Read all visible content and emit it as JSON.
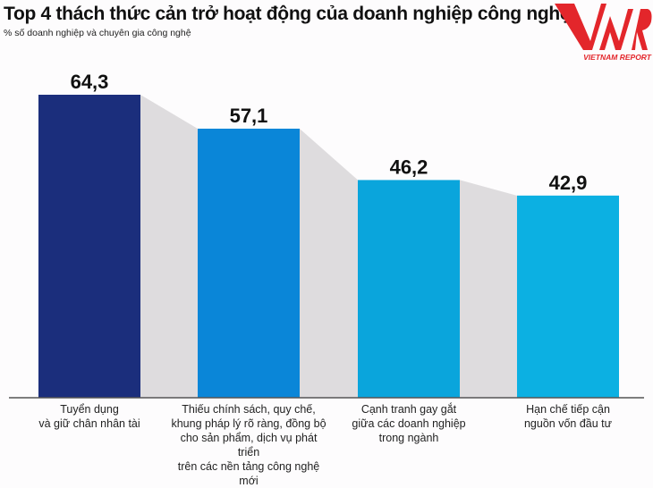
{
  "chart_data": {
    "type": "bar",
    "title": "Top 4 thách thức cản trở hoạt động của doanh nghiệp công nghệ",
    "subtitle": "% số doanh nghiệp và chuyên gia công nghệ",
    "categories": [
      "Tuyển dụng\nvà giữ chân nhân tài",
      "Thiếu chính sách, quy chế,\nkhung pháp lý rõ ràng, đồng bộ\ncho sản phẩm, dịch vụ phát triển\ntrên các nền tảng công nghệ mới",
      "Cạnh tranh gay gắt\ngiữa các doanh nghiệp\ntrong ngành",
      "Hạn chế tiếp cận\nnguồn vốn đầu tư"
    ],
    "values": [
      64.3,
      57.1,
      46.2,
      42.9
    ],
    "data_labels": [
      "64,3",
      "57,1",
      "46,2",
      "42,9"
    ],
    "colors": [
      "#1b2e7c",
      "#0a86d8",
      "#0aa5dc",
      "#0cb0e2"
    ],
    "connector_color": "#dedcde",
    "ylim": [
      0,
      64.3
    ],
    "grid": false
  },
  "logo": {
    "text": "VNR",
    "subtext": "VIETNAM REPORT",
    "color": "#e3262b"
  }
}
